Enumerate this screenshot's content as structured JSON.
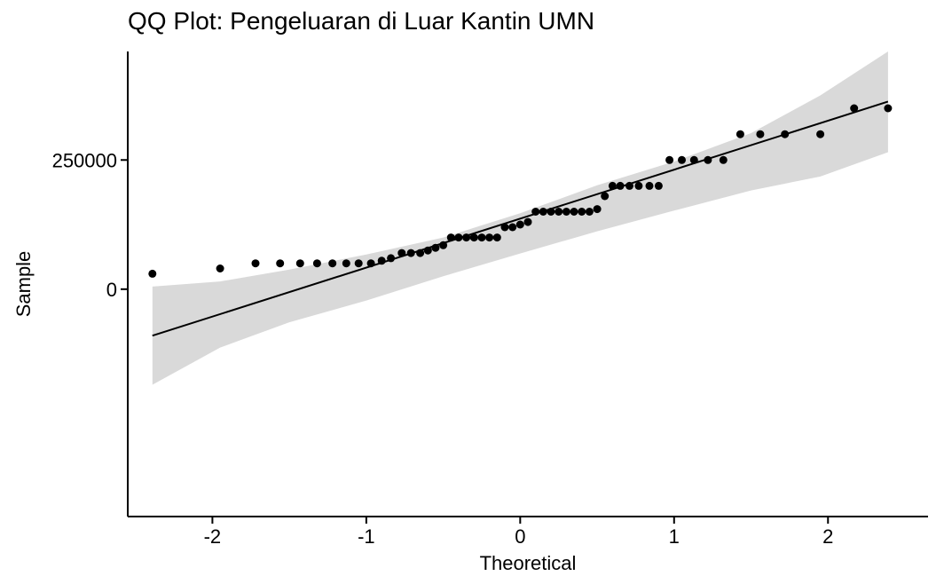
{
  "chart_data": {
    "type": "scatter",
    "title": "QQ Plot: Pengeluaran di Luar Kantin UMN",
    "xlabel": "Theoretical",
    "ylabel": "Sample",
    "xlim": [
      -2.55,
      2.65
    ],
    "ylim": [
      -440000,
      460000
    ],
    "x_ticks": [
      -2,
      -1,
      0,
      1,
      2
    ],
    "x_tick_labels": [
      "-2",
      "-1",
      "0",
      "1",
      "2"
    ],
    "y_ticks": [
      0,
      250000
    ],
    "y_tick_labels": [
      "0",
      "250000"
    ],
    "grid": false,
    "legend": "none",
    "colors": {
      "points": "#000000",
      "line": "#000000",
      "band": "#d9d9d9",
      "axis": "#000000"
    },
    "reference_line": {
      "x": [
        -2.39,
        2.39
      ],
      "y": [
        -90000,
        363000
      ]
    },
    "confidence_band": {
      "x": [
        -2.39,
        -1.95,
        -1.5,
        -1.0,
        -0.5,
        0.0,
        0.5,
        1.0,
        1.5,
        1.95,
        2.39
      ],
      "lower": [
        -185000,
        -113000,
        -64000,
        -22000,
        25000,
        69000,
        112000,
        152000,
        191000,
        218000,
        265000
      ],
      "upper": [
        5000,
        15000,
        38000,
        67000,
        100000,
        147000,
        201000,
        247000,
        302000,
        375000,
        460000
      ]
    },
    "points": [
      {
        "x": -2.39,
        "y": 30000
      },
      {
        "x": -1.95,
        "y": 40000
      },
      {
        "x": -1.72,
        "y": 50000
      },
      {
        "x": -1.56,
        "y": 50000
      },
      {
        "x": -1.43,
        "y": 50000
      },
      {
        "x": -1.32,
        "y": 50000
      },
      {
        "x": -1.22,
        "y": 50000
      },
      {
        "x": -1.13,
        "y": 50000
      },
      {
        "x": -1.05,
        "y": 50000
      },
      {
        "x": -0.97,
        "y": 50000
      },
      {
        "x": -0.9,
        "y": 55000
      },
      {
        "x": -0.84,
        "y": 60000
      },
      {
        "x": -0.77,
        "y": 70000
      },
      {
        "x": -0.71,
        "y": 70000
      },
      {
        "x": -0.65,
        "y": 70000
      },
      {
        "x": -0.6,
        "y": 75000
      },
      {
        "x": -0.55,
        "y": 80000
      },
      {
        "x": -0.5,
        "y": 85000
      },
      {
        "x": -0.45,
        "y": 100000
      },
      {
        "x": -0.4,
        "y": 100000
      },
      {
        "x": -0.35,
        "y": 100000
      },
      {
        "x": -0.3,
        "y": 100000
      },
      {
        "x": -0.25,
        "y": 100000
      },
      {
        "x": -0.2,
        "y": 100000
      },
      {
        "x": -0.15,
        "y": 100000
      },
      {
        "x": -0.1,
        "y": 120000
      },
      {
        "x": -0.05,
        "y": 120000
      },
      {
        "x": 0.0,
        "y": 125000
      },
      {
        "x": 0.05,
        "y": 130000
      },
      {
        "x": 0.1,
        "y": 150000
      },
      {
        "x": 0.15,
        "y": 150000
      },
      {
        "x": 0.2,
        "y": 150000
      },
      {
        "x": 0.25,
        "y": 150000
      },
      {
        "x": 0.3,
        "y": 150000
      },
      {
        "x": 0.35,
        "y": 150000
      },
      {
        "x": 0.4,
        "y": 150000
      },
      {
        "x": 0.45,
        "y": 150000
      },
      {
        "x": 0.5,
        "y": 155000
      },
      {
        "x": 0.55,
        "y": 180000
      },
      {
        "x": 0.6,
        "y": 200000
      },
      {
        "x": 0.65,
        "y": 200000
      },
      {
        "x": 0.71,
        "y": 200000
      },
      {
        "x": 0.77,
        "y": 200000
      },
      {
        "x": 0.84,
        "y": 200000
      },
      {
        "x": 0.9,
        "y": 200000
      },
      {
        "x": 0.97,
        "y": 250000
      },
      {
        "x": 1.05,
        "y": 250000
      },
      {
        "x": 1.13,
        "y": 250000
      },
      {
        "x": 1.22,
        "y": 250000
      },
      {
        "x": 1.32,
        "y": 250000
      },
      {
        "x": 1.43,
        "y": 300000
      },
      {
        "x": 1.56,
        "y": 300000
      },
      {
        "x": 1.72,
        "y": 300000
      },
      {
        "x": 1.95,
        "y": 300000
      },
      {
        "x": 2.17,
        "y": 350000
      },
      {
        "x": 2.39,
        "y": 350000
      }
    ]
  }
}
